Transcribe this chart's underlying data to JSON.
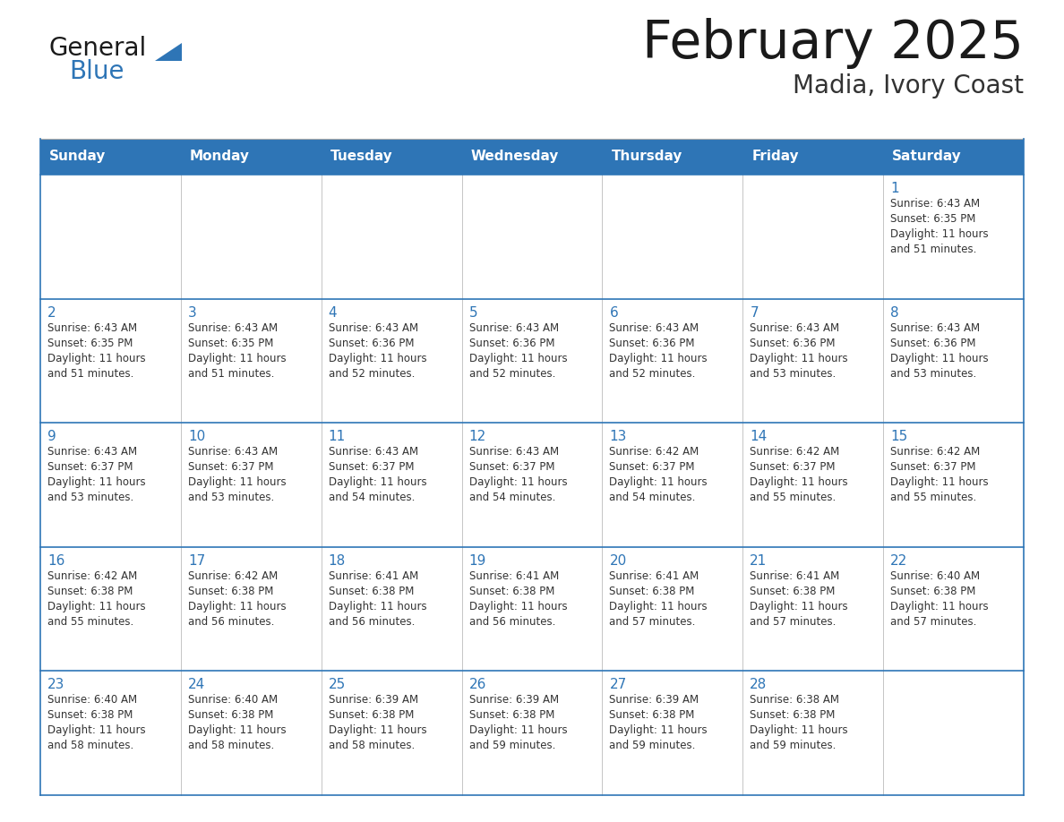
{
  "title": "February 2025",
  "subtitle": "Madia, Ivory Coast",
  "header_bg": "#2E75B6",
  "header_text_color": "#FFFFFF",
  "border_color": "#2E75B6",
  "separator_color": "#4472C4",
  "cell_bg": "#FFFFFF",
  "day_headers": [
    "Sunday",
    "Monday",
    "Tuesday",
    "Wednesday",
    "Thursday",
    "Friday",
    "Saturday"
  ],
  "title_color": "#1a1a1a",
  "subtitle_color": "#333333",
  "day_number_color": "#2E75B6",
  "cell_text_color": "#333333",
  "logo_general_color": "#1a1a1a",
  "logo_blue_color": "#2E75B6",
  "logo_triangle_color": "#2E75B6",
  "calendar": [
    [
      {
        "day": "",
        "info": ""
      },
      {
        "day": "",
        "info": ""
      },
      {
        "day": "",
        "info": ""
      },
      {
        "day": "",
        "info": ""
      },
      {
        "day": "",
        "info": ""
      },
      {
        "day": "",
        "info": ""
      },
      {
        "day": "1",
        "info": "Sunrise: 6:43 AM\nSunset: 6:35 PM\nDaylight: 11 hours\nand 51 minutes."
      }
    ],
    [
      {
        "day": "2",
        "info": "Sunrise: 6:43 AM\nSunset: 6:35 PM\nDaylight: 11 hours\nand 51 minutes."
      },
      {
        "day": "3",
        "info": "Sunrise: 6:43 AM\nSunset: 6:35 PM\nDaylight: 11 hours\nand 51 minutes."
      },
      {
        "day": "4",
        "info": "Sunrise: 6:43 AM\nSunset: 6:36 PM\nDaylight: 11 hours\nand 52 minutes."
      },
      {
        "day": "5",
        "info": "Sunrise: 6:43 AM\nSunset: 6:36 PM\nDaylight: 11 hours\nand 52 minutes."
      },
      {
        "day": "6",
        "info": "Sunrise: 6:43 AM\nSunset: 6:36 PM\nDaylight: 11 hours\nand 52 minutes."
      },
      {
        "day": "7",
        "info": "Sunrise: 6:43 AM\nSunset: 6:36 PM\nDaylight: 11 hours\nand 53 minutes."
      },
      {
        "day": "8",
        "info": "Sunrise: 6:43 AM\nSunset: 6:36 PM\nDaylight: 11 hours\nand 53 minutes."
      }
    ],
    [
      {
        "day": "9",
        "info": "Sunrise: 6:43 AM\nSunset: 6:37 PM\nDaylight: 11 hours\nand 53 minutes."
      },
      {
        "day": "10",
        "info": "Sunrise: 6:43 AM\nSunset: 6:37 PM\nDaylight: 11 hours\nand 53 minutes."
      },
      {
        "day": "11",
        "info": "Sunrise: 6:43 AM\nSunset: 6:37 PM\nDaylight: 11 hours\nand 54 minutes."
      },
      {
        "day": "12",
        "info": "Sunrise: 6:43 AM\nSunset: 6:37 PM\nDaylight: 11 hours\nand 54 minutes."
      },
      {
        "day": "13",
        "info": "Sunrise: 6:42 AM\nSunset: 6:37 PM\nDaylight: 11 hours\nand 54 minutes."
      },
      {
        "day": "14",
        "info": "Sunrise: 6:42 AM\nSunset: 6:37 PM\nDaylight: 11 hours\nand 55 minutes."
      },
      {
        "day": "15",
        "info": "Sunrise: 6:42 AM\nSunset: 6:37 PM\nDaylight: 11 hours\nand 55 minutes."
      }
    ],
    [
      {
        "day": "16",
        "info": "Sunrise: 6:42 AM\nSunset: 6:38 PM\nDaylight: 11 hours\nand 55 minutes."
      },
      {
        "day": "17",
        "info": "Sunrise: 6:42 AM\nSunset: 6:38 PM\nDaylight: 11 hours\nand 56 minutes."
      },
      {
        "day": "18",
        "info": "Sunrise: 6:41 AM\nSunset: 6:38 PM\nDaylight: 11 hours\nand 56 minutes."
      },
      {
        "day": "19",
        "info": "Sunrise: 6:41 AM\nSunset: 6:38 PM\nDaylight: 11 hours\nand 56 minutes."
      },
      {
        "day": "20",
        "info": "Sunrise: 6:41 AM\nSunset: 6:38 PM\nDaylight: 11 hours\nand 57 minutes."
      },
      {
        "day": "21",
        "info": "Sunrise: 6:41 AM\nSunset: 6:38 PM\nDaylight: 11 hours\nand 57 minutes."
      },
      {
        "day": "22",
        "info": "Sunrise: 6:40 AM\nSunset: 6:38 PM\nDaylight: 11 hours\nand 57 minutes."
      }
    ],
    [
      {
        "day": "23",
        "info": "Sunrise: 6:40 AM\nSunset: 6:38 PM\nDaylight: 11 hours\nand 58 minutes."
      },
      {
        "day": "24",
        "info": "Sunrise: 6:40 AM\nSunset: 6:38 PM\nDaylight: 11 hours\nand 58 minutes."
      },
      {
        "day": "25",
        "info": "Sunrise: 6:39 AM\nSunset: 6:38 PM\nDaylight: 11 hours\nand 58 minutes."
      },
      {
        "day": "26",
        "info": "Sunrise: 6:39 AM\nSunset: 6:38 PM\nDaylight: 11 hours\nand 59 minutes."
      },
      {
        "day": "27",
        "info": "Sunrise: 6:39 AM\nSunset: 6:38 PM\nDaylight: 11 hours\nand 59 minutes."
      },
      {
        "day": "28",
        "info": "Sunrise: 6:38 AM\nSunset: 6:38 PM\nDaylight: 11 hours\nand 59 minutes."
      },
      {
        "day": "",
        "info": ""
      }
    ]
  ]
}
